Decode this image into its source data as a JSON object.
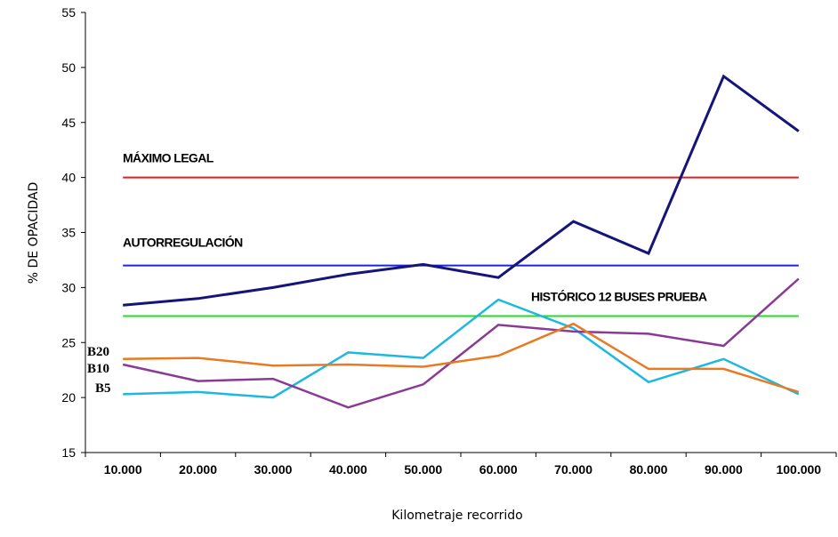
{
  "chart_data": {
    "type": "line",
    "title": "",
    "xlabel": "Kilometraje recorrido",
    "ylabel": "% DE OPACIDAD",
    "ylim": [
      15,
      55
    ],
    "yticks": [
      15,
      20,
      25,
      30,
      35,
      40,
      45,
      50,
      55
    ],
    "categories": [
      "10.000",
      "20.000",
      "30.000",
      "40.000",
      "50.000",
      "60.000",
      "70.000",
      "80.000",
      "90.000",
      "100.000"
    ],
    "grid": false,
    "series": [
      {
        "id": "diesel",
        "color": "#14147a",
        "values": [
          28.4,
          29.0,
          30.0,
          31.2,
          32.1,
          30.9,
          36.0,
          33.1,
          49.2,
          44.2
        ]
      },
      {
        "id": "b5",
        "name": "B5",
        "color": "#1cb8e0",
        "values": [
          20.3,
          20.5,
          20.0,
          24.1,
          23.6,
          28.9,
          26.3,
          21.4,
          23.5,
          20.3
        ]
      },
      {
        "id": "b10",
        "name": "B10",
        "color": "#8a3a96",
        "values": [
          23.0,
          21.5,
          21.7,
          19.1,
          21.2,
          26.6,
          26.0,
          25.8,
          24.7,
          30.8
        ]
      },
      {
        "id": "b20",
        "name": "B20",
        "color": "#e87a22",
        "values": [
          23.5,
          23.6,
          22.9,
          23.0,
          22.8,
          23.8,
          26.7,
          22.6,
          22.6,
          20.5
        ]
      }
    ],
    "reference_lines": [
      {
        "id": "maximo-legal",
        "label": "MÁXIMO LEGAL",
        "value": 40,
        "color": "#e41c1c"
      },
      {
        "id": "autorregulacion",
        "label": "AUTORREGULACIÓN",
        "value": 32,
        "color": "#1f25d6"
      },
      {
        "id": "historico",
        "label": "HISTÓRICO 12 BUSES PRUEBA",
        "value": 27.4,
        "color": "#22dd22"
      }
    ]
  }
}
